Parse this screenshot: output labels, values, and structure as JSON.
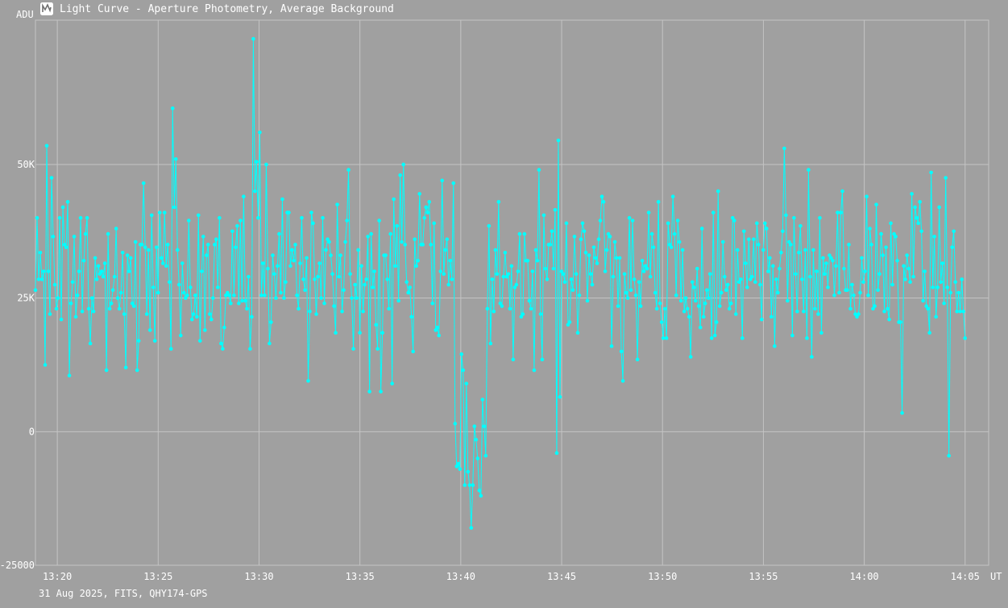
{
  "title": "Light Curve - Aperture Photometry, Average Background",
  "app_icon": "light-curve-app-icon",
  "footer": "31 Aug 2025, FITS, QHY174-GPS",
  "colors": {
    "background": "#a0a0a0",
    "grid": "#c4c4c4",
    "series": "#00ffff",
    "text": "#ffffff"
  },
  "chart_data": {
    "type": "line",
    "ylabel": "ADU",
    "xlabel": "UT",
    "ylim": [
      -25000,
      77000
    ],
    "xlim": [
      "13:18:55",
      "14:06:10"
    ],
    "grid": true,
    "markers": true,
    "x_tick_labels": [
      "13:20",
      "13:25",
      "13:30",
      "13:35",
      "13:40",
      "13:45",
      "13:50",
      "13:55",
      "14:00",
      "14:05"
    ],
    "y_tick_labels": [
      "-25000",
      "0",
      "25K",
      "50K"
    ],
    "y_tick_values": [
      -25000,
      0,
      25000,
      50000
    ],
    "series": [
      {
        "x_start": "13:18:55",
        "x_step_seconds": 4.8,
        "values": [
          26500,
          40000,
          28500,
          33500,
          28500,
          30000,
          12500,
          53500,
          30000,
          22000,
          47500,
          36500,
          27500,
          23000,
          25000,
          40000,
          21000,
          42000,
          35000,
          34500,
          43000,
          10500,
          24000,
          28000,
          36500,
          21500,
          25500,
          30000,
          40000,
          22500,
          32000,
          37000,
          40000,
          23000,
          16500,
          25000,
          22500,
          32500,
          28500,
          31000,
          29500,
          30000,
          29000,
          31500,
          11500,
          37000,
          23000,
          24000,
          26500,
          29000,
          38000,
          25000,
          23000,
          26000,
          33500,
          22000,
          12000,
          33000,
          30000,
          32500,
          24000,
          23500,
          35500,
          11500,
          17000,
          35000,
          35000,
          46500,
          34500,
          22000,
          34000,
          19000,
          40500,
          27000,
          17000,
          34500,
          26000,
          41000,
          32500,
          31500,
          41000,
          31000,
          35000,
          28000,
          15500,
          60500,
          42000,
          51000,
          34000,
          27500,
          18000,
          31500,
          26000,
          25000,
          25500,
          39500,
          27000,
          21000,
          22000,
          25500,
          21500,
          40500,
          17000,
          30000,
          36500,
          19000,
          33000,
          35000,
          22000,
          21000,
          25000,
          35000,
          36000,
          27000,
          40000,
          16500,
          15500,
          19500,
          25500,
          26000,
          25500,
          24000,
          37500,
          25500,
          34500,
          38500,
          24000,
          39500,
          24500,
          44000,
          24500,
          23000,
          29000,
          15500,
          21500,
          73500,
          45000,
          50500,
          40000,
          56000,
          25500,
          31500,
          25500,
          50000,
          30500,
          16500,
          20500,
          33000,
          29500,
          25000,
          31000,
          37000,
          26000,
          43500,
          25000,
          28000,
          41000,
          41000,
          31000,
          34000,
          32000,
          35000,
          25500,
          23000,
          31500,
          40000,
          28500,
          26500,
          32500,
          9500,
          22500,
          41000,
          39000,
          28500,
          22000,
          29000,
          31500,
          25000,
          40000,
          24000,
          34000,
          36000,
          35500,
          33000,
          29500,
          23500,
          18500,
          42500,
          29000,
          33000,
          22500,
          26500,
          35500,
          39500,
          49000,
          29500,
          25000,
          15500,
          27500,
          25000,
          34000,
          18500,
          31000,
          22500,
          27500,
          28500,
          36500,
          7500,
          37000,
          27000,
          30000,
          20000,
          15500,
          39500,
          7500,
          18500,
          33000,
          33000,
          28500,
          23000,
          37000,
          9000,
          43500,
          31000,
          38500,
          24500,
          48000,
          35500,
          50000,
          35000,
          28000,
          26000,
          27000,
          21500,
          15000,
          36000,
          31000,
          32000,
          44500,
          35000,
          35000,
          40000,
          42000,
          41000,
          43000,
          35000,
          24000,
          39000,
          19000,
          19500,
          18000,
          30000,
          47000,
          29500,
          34000,
          36000,
          27500,
          32000,
          28500,
          46500,
          1500,
          -6500,
          -6000,
          -7000,
          14500,
          11500,
          -10000,
          9000,
          -7500,
          -10000,
          -18000,
          -10000,
          1000,
          -1500,
          -5000,
          -11000,
          -12000,
          6000,
          1000,
          -4500,
          23000,
          38500,
          16500,
          28500,
          22500,
          34000,
          29500,
          43000,
          24000,
          23500,
          29000,
          33500,
          29000,
          29500,
          23000,
          31000,
          13500,
          27000,
          27500,
          30000,
          37000,
          21500,
          22000,
          37000,
          32000,
          32000,
          24500,
          23000,
          30000,
          11500,
          34000,
          32000,
          49000,
          22000,
          13500,
          40500,
          30500,
          28500,
          35000,
          35000,
          37500,
          30500,
          41500,
          -4000,
          54500,
          6500,
          30000,
          29500,
          28000,
          39000,
          20000,
          20500,
          28500,
          26500,
          36500,
          29500,
          18500,
          25500,
          36000,
          39000,
          37500,
          33500,
          24500,
          33000,
          29500,
          27500,
          34500,
          32500,
          31500,
          36000,
          39500,
          44000,
          43000,
          30000,
          34000,
          37000,
          36500,
          16000,
          29000,
          35500,
          32500,
          23500,
          32500,
          15000,
          9500,
          29500,
          26000,
          25000,
          40000,
          26500,
          39500,
          28500,
          25500,
          13500,
          28000,
          23500,
          32000,
          30000,
          31000,
          30500,
          41000,
          29000,
          37000,
          34500,
          26000,
          23000,
          43000,
          24000,
          20500,
          17500,
          23000,
          17500,
          39000,
          35000,
          34500,
          44000,
          37000,
          25500,
          39500,
          35500,
          24500,
          34000,
          22500,
          25000,
          23000,
          21500,
          14000,
          28000,
          27000,
          24500,
          30500,
          23500,
          19500,
          38000,
          21500,
          24000,
          26500,
          25000,
          29500,
          17500,
          41000,
          18000,
          20500,
          45000,
          23500,
          26000,
          35500,
          29000,
          26500,
          27500,
          23000,
          24000,
          40000,
          39500,
          22000,
          34000,
          28000,
          28500,
          17500,
          37500,
          31500,
          27000,
          36000,
          28500,
          29000,
          36000,
          28000,
          39000,
          35000,
          27500,
          21000,
          34000,
          39000,
          38000,
          30000,
          32500,
          21500,
          31000,
          16000,
          28500,
          26000,
          30500,
          33500,
          37500,
          53000,
          40500,
          24500,
          35500,
          35000,
          18000,
          40000,
          29500,
          22500,
          33500,
          38500,
          28500,
          22500,
          34000,
          17500,
          49000,
          29000,
          14000,
          34000,
          23000,
          30000,
          22000,
          40000,
          18500,
          32500,
          29500,
          31500,
          27000,
          33000,
          32500,
          32000,
          25500,
          31000,
          41000,
          26000,
          41000,
          45000,
          30500,
          26500,
          26500,
          35000,
          23000,
          27500,
          25500,
          22000,
          21500,
          22000,
          26000,
          32500,
          28000,
          30000,
          44000,
          25500,
          38000,
          35000,
          23000,
          23500,
          42500,
          26500,
          29500,
          37000,
          33000,
          22500,
          34500,
          23000,
          21000,
          39000,
          27500,
          37000,
          36500,
          32000,
          20500,
          20500,
          3500,
          31000,
          28500,
          33000,
          30500,
          28000,
          44500,
          29000,
          42000,
          40000,
          39000,
          43000,
          37500,
          24500,
          30000,
          23500,
          23000,
          18500,
          48500,
          27000,
          36500,
          21500,
          27000,
          42000,
          28000,
          31500,
          24000,
          47500,
          27000,
          -4500,
          26000,
          34500,
          37500,
          28000,
          22500,
          26000,
          22500,
          28500,
          22500,
          17500
        ]
      }
    ]
  }
}
